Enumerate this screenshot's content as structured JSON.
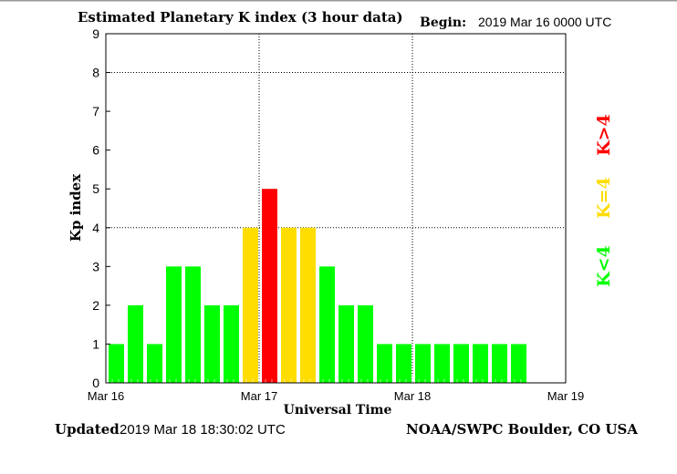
{
  "chart_data": {
    "type": "bar",
    "title": "Estimated Planetary K index (3 hour data)",
    "begin_label": "Begin:",
    "begin_value": "2019 Mar 16 0000 UTC",
    "xlabel": "Universal Time",
    "ylabel": "Kp index",
    "ylim": [
      0,
      9
    ],
    "y_ticks": [
      "0",
      "1",
      "2",
      "3",
      "4",
      "5",
      "6",
      "7",
      "8",
      "9"
    ],
    "x_ticks": [
      "Mar 16",
      "Mar 17",
      "Mar 18",
      "Mar 19"
    ],
    "x_range_hours": [
      0,
      72
    ],
    "bin_hours": 3,
    "grid": "dotted at Kp 4, 8 and day boundaries",
    "values": [
      1,
      2,
      1,
      3,
      3,
      2,
      2,
      4,
      5,
      4,
      4,
      3,
      2,
      2,
      1,
      1,
      1,
      1,
      1,
      1,
      1,
      1
    ],
    "legend": [
      {
        "label": "K>4",
        "color": "#ff0000"
      },
      {
        "label": "K=4",
        "color": "#ffdd00"
      },
      {
        "label": "K<4",
        "color": "#00ff00"
      }
    ],
    "legend_placement": "right"
  },
  "footer": {
    "updated_label": "Updated",
    "updated_value": "2019 Mar 18 18:30:02 UTC",
    "credit": "NOAA/SWPC Boulder, CO USA"
  }
}
